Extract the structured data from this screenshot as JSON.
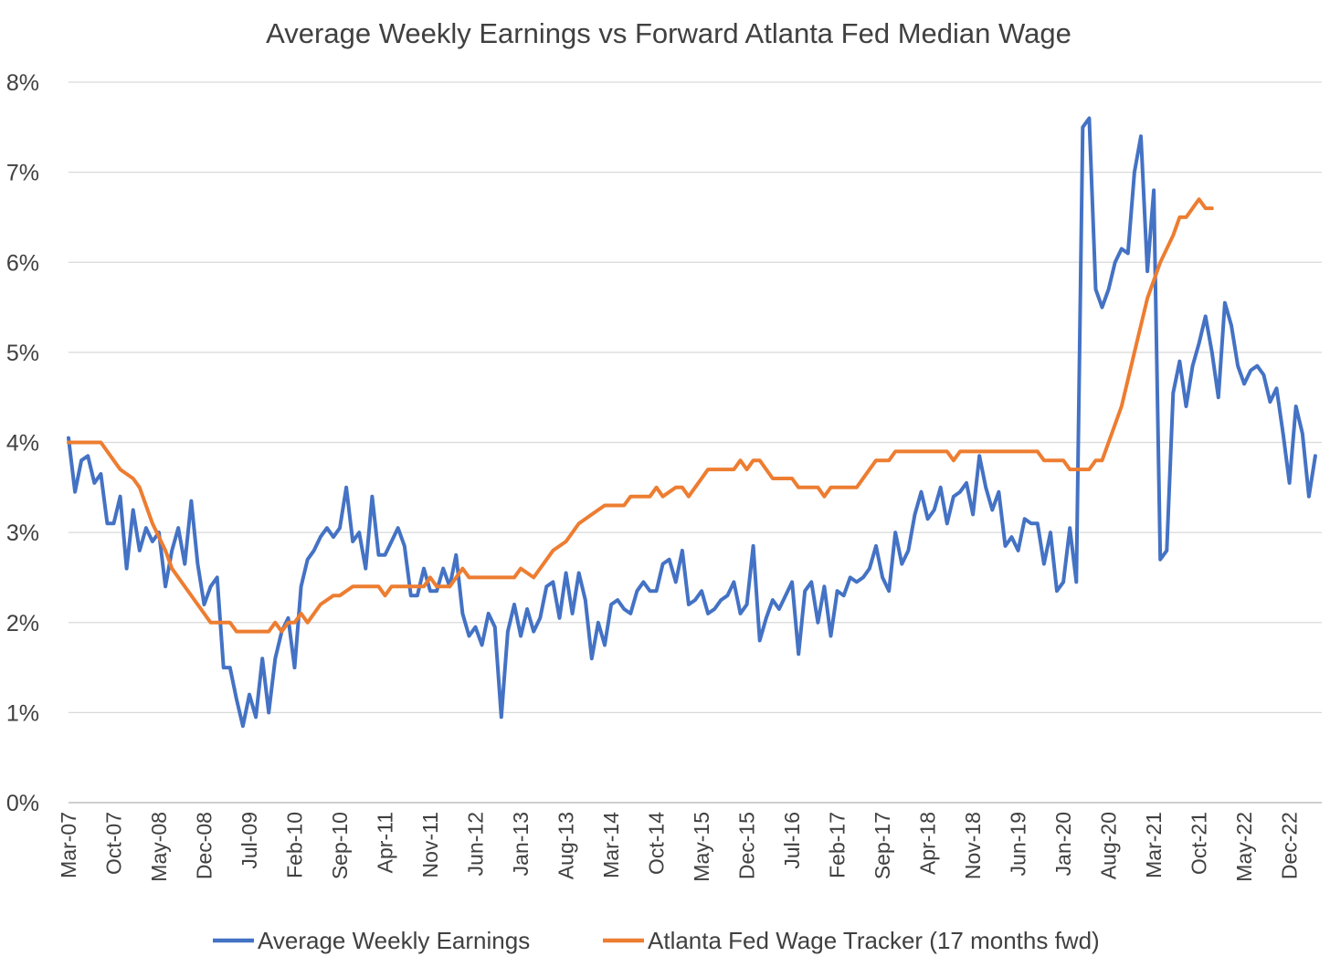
{
  "chart_data": {
    "type": "line",
    "title": "Average Weekly Earnings vs Forward Atlanta Fed Median Wage",
    "xlabel": "",
    "ylabel": "",
    "ylim": [
      0,
      8
    ],
    "y_ticks": [
      0,
      1,
      2,
      3,
      4,
      5,
      6,
      7,
      8
    ],
    "y_tick_labels": [
      "0%",
      "1%",
      "2%",
      "3%",
      "4%",
      "5%",
      "6%",
      "7%",
      "8%"
    ],
    "x_range": [
      "2007-03",
      "2023-05"
    ],
    "x_tick_labels": [
      "Mar-07",
      "Oct-07",
      "May-08",
      "Dec-08",
      "Jul-09",
      "Feb-10",
      "Sep-10",
      "Apr-11",
      "Nov-11",
      "Jun-12",
      "Jan-13",
      "Aug-13",
      "Mar-14",
      "Oct-14",
      "May-15",
      "Dec-15",
      "Jul-16",
      "Feb-17",
      "Sep-17",
      "Apr-18",
      "Nov-18",
      "Jun-19",
      "Jan-20",
      "Aug-20",
      "Mar-21",
      "Oct-21",
      "May-22",
      "Dec-22"
    ],
    "grid": true,
    "legend_position": "bottom",
    "series": [
      {
        "name": "Average Weekly Earnings",
        "color": "#4472C4",
        "points": [
          [
            "2007-03",
            4.05
          ],
          [
            "2007-04",
            3.45
          ],
          [
            "2007-05",
            3.8
          ],
          [
            "2007-06",
            3.85
          ],
          [
            "2007-07",
            3.55
          ],
          [
            "2007-08",
            3.65
          ],
          [
            "2007-09",
            3.1
          ],
          [
            "2007-10",
            3.1
          ],
          [
            "2007-11",
            3.4
          ],
          [
            "2007-12",
            2.6
          ],
          [
            "2008-01",
            3.25
          ],
          [
            "2008-02",
            2.8
          ],
          [
            "2008-03",
            3.05
          ],
          [
            "2008-04",
            2.9
          ],
          [
            "2008-05",
            3.0
          ],
          [
            "2008-06",
            2.4
          ],
          [
            "2008-07",
            2.8
          ],
          [
            "2008-08",
            3.05
          ],
          [
            "2008-09",
            2.65
          ],
          [
            "2008-10",
            3.35
          ],
          [
            "2008-11",
            2.65
          ],
          [
            "2008-12",
            2.2
          ],
          [
            "2009-01",
            2.4
          ],
          [
            "2009-02",
            2.5
          ],
          [
            "2009-03",
            1.5
          ],
          [
            "2009-04",
            1.5
          ],
          [
            "2009-05",
            1.15
          ],
          [
            "2009-06",
            0.85
          ],
          [
            "2009-07",
            1.2
          ],
          [
            "2009-08",
            0.95
          ],
          [
            "2009-09",
            1.6
          ],
          [
            "2009-10",
            1.0
          ],
          [
            "2009-11",
            1.6
          ],
          [
            "2009-12",
            1.9
          ],
          [
            "2010-01",
            2.05
          ],
          [
            "2010-02",
            1.5
          ],
          [
            "2010-03",
            2.4
          ],
          [
            "2010-04",
            2.7
          ],
          [
            "2010-05",
            2.8
          ],
          [
            "2010-06",
            2.95
          ],
          [
            "2010-07",
            3.05
          ],
          [
            "2010-08",
            2.95
          ],
          [
            "2010-09",
            3.05
          ],
          [
            "2010-10",
            3.5
          ],
          [
            "2010-11",
            2.9
          ],
          [
            "2010-12",
            3.0
          ],
          [
            "2011-01",
            2.6
          ],
          [
            "2011-02",
            3.4
          ],
          [
            "2011-03",
            2.75
          ],
          [
            "2011-04",
            2.75
          ],
          [
            "2011-05",
            2.9
          ],
          [
            "2011-06",
            3.05
          ],
          [
            "2011-07",
            2.85
          ],
          [
            "2011-08",
            2.3
          ],
          [
            "2011-09",
            2.3
          ],
          [
            "2011-10",
            2.6
          ],
          [
            "2011-11",
            2.35
          ],
          [
            "2011-12",
            2.35
          ],
          [
            "2012-01",
            2.6
          ],
          [
            "2012-02",
            2.4
          ],
          [
            "2012-03",
            2.75
          ],
          [
            "2012-04",
            2.1
          ],
          [
            "2012-05",
            1.85
          ],
          [
            "2012-06",
            1.95
          ],
          [
            "2012-07",
            1.75
          ],
          [
            "2012-08",
            2.1
          ],
          [
            "2012-09",
            1.95
          ],
          [
            "2012-10",
            0.95
          ],
          [
            "2012-11",
            1.9
          ],
          [
            "2012-12",
            2.2
          ],
          [
            "2013-01",
            1.85
          ],
          [
            "2013-02",
            2.15
          ],
          [
            "2013-03",
            1.9
          ],
          [
            "2013-04",
            2.05
          ],
          [
            "2013-05",
            2.4
          ],
          [
            "2013-06",
            2.45
          ],
          [
            "2013-07",
            2.05
          ],
          [
            "2013-08",
            2.55
          ],
          [
            "2013-09",
            2.1
          ],
          [
            "2013-10",
            2.55
          ],
          [
            "2013-11",
            2.25
          ],
          [
            "2013-12",
            1.6
          ],
          [
            "2014-01",
            2.0
          ],
          [
            "2014-02",
            1.75
          ],
          [
            "2014-03",
            2.2
          ],
          [
            "2014-04",
            2.25
          ],
          [
            "2014-05",
            2.15
          ],
          [
            "2014-06",
            2.1
          ],
          [
            "2014-07",
            2.35
          ],
          [
            "2014-08",
            2.45
          ],
          [
            "2014-09",
            2.35
          ],
          [
            "2014-10",
            2.35
          ],
          [
            "2014-11",
            2.65
          ],
          [
            "2014-12",
            2.7
          ],
          [
            "2015-01",
            2.45
          ],
          [
            "2015-02",
            2.8
          ],
          [
            "2015-03",
            2.2
          ],
          [
            "2015-04",
            2.25
          ],
          [
            "2015-05",
            2.35
          ],
          [
            "2015-06",
            2.1
          ],
          [
            "2015-07",
            2.15
          ],
          [
            "2015-08",
            2.25
          ],
          [
            "2015-09",
            2.3
          ],
          [
            "2015-10",
            2.45
          ],
          [
            "2015-11",
            2.1
          ],
          [
            "2015-12",
            2.2
          ],
          [
            "2016-01",
            2.85
          ],
          [
            "2016-02",
            1.8
          ],
          [
            "2016-03",
            2.05
          ],
          [
            "2016-04",
            2.25
          ],
          [
            "2016-05",
            2.15
          ],
          [
            "2016-06",
            2.3
          ],
          [
            "2016-07",
            2.45
          ],
          [
            "2016-08",
            1.65
          ],
          [
            "2016-09",
            2.35
          ],
          [
            "2016-10",
            2.45
          ],
          [
            "2016-11",
            2.0
          ],
          [
            "2016-12",
            2.4
          ],
          [
            "2017-01",
            1.85
          ],
          [
            "2017-02",
            2.35
          ],
          [
            "2017-03",
            2.3
          ],
          [
            "2017-04",
            2.5
          ],
          [
            "2017-05",
            2.45
          ],
          [
            "2017-06",
            2.5
          ],
          [
            "2017-07",
            2.6
          ],
          [
            "2017-08",
            2.85
          ],
          [
            "2017-09",
            2.5
          ],
          [
            "2017-10",
            2.35
          ],
          [
            "2017-11",
            3.0
          ],
          [
            "2017-12",
            2.65
          ],
          [
            "2018-01",
            2.8
          ],
          [
            "2018-02",
            3.2
          ],
          [
            "2018-03",
            3.45
          ],
          [
            "2018-04",
            3.15
          ],
          [
            "2018-05",
            3.25
          ],
          [
            "2018-06",
            3.5
          ],
          [
            "2018-07",
            3.1
          ],
          [
            "2018-08",
            3.4
          ],
          [
            "2018-09",
            3.45
          ],
          [
            "2018-10",
            3.55
          ],
          [
            "2018-11",
            3.2
          ],
          [
            "2018-12",
            3.85
          ],
          [
            "2019-01",
            3.5
          ],
          [
            "2019-02",
            3.25
          ],
          [
            "2019-03",
            3.45
          ],
          [
            "2019-04",
            2.85
          ],
          [
            "2019-05",
            2.95
          ],
          [
            "2019-06",
            2.8
          ],
          [
            "2019-07",
            3.15
          ],
          [
            "2019-08",
            3.1
          ],
          [
            "2019-09",
            3.1
          ],
          [
            "2019-10",
            2.65
          ],
          [
            "2019-11",
            3.0
          ],
          [
            "2019-12",
            2.35
          ],
          [
            "2020-01",
            2.45
          ],
          [
            "2020-02",
            3.05
          ],
          [
            "2020-03",
            2.45
          ],
          [
            "2020-04",
            7.5
          ],
          [
            "2020-05",
            7.6
          ],
          [
            "2020-06",
            5.7
          ],
          [
            "2020-07",
            5.5
          ],
          [
            "2020-08",
            5.7
          ],
          [
            "2020-09",
            6.0
          ],
          [
            "2020-10",
            6.15
          ],
          [
            "2020-11",
            6.1
          ],
          [
            "2020-12",
            7.0
          ],
          [
            "2021-01",
            7.4
          ],
          [
            "2021-02",
            5.9
          ],
          [
            "2021-03",
            6.8
          ],
          [
            "2021-04",
            2.7
          ],
          [
            "2021-05",
            2.8
          ],
          [
            "2021-06",
            4.55
          ],
          [
            "2021-07",
            4.9
          ],
          [
            "2021-08",
            4.4
          ],
          [
            "2021-09",
            4.85
          ],
          [
            "2021-10",
            5.1
          ],
          [
            "2021-11",
            5.4
          ],
          [
            "2021-12",
            5.0
          ],
          [
            "2022-01",
            4.5
          ],
          [
            "2022-02",
            5.55
          ],
          [
            "2022-03",
            5.3
          ],
          [
            "2022-04",
            4.85
          ],
          [
            "2022-05",
            4.65
          ],
          [
            "2022-06",
            4.8
          ],
          [
            "2022-07",
            4.85
          ],
          [
            "2022-08",
            4.75
          ],
          [
            "2022-09",
            4.45
          ],
          [
            "2022-10",
            4.6
          ],
          [
            "2022-11",
            4.1
          ],
          [
            "2022-12",
            3.55
          ],
          [
            "2023-01",
            4.4
          ],
          [
            "2023-02",
            4.1
          ],
          [
            "2023-03",
            3.4
          ],
          [
            "2023-04",
            3.85
          ]
        ]
      },
      {
        "name": "Atlanta Fed Wage Tracker (17 months fwd)",
        "color": "#ED7D31",
        "points": [
          [
            "2007-03",
            4.0
          ],
          [
            "2007-07",
            4.0
          ],
          [
            "2007-08",
            4.0
          ],
          [
            "2007-10",
            3.8
          ],
          [
            "2007-11",
            3.7
          ],
          [
            "2008-01",
            3.6
          ],
          [
            "2008-02",
            3.5
          ],
          [
            "2008-04",
            3.1
          ],
          [
            "2008-06",
            2.8
          ],
          [
            "2008-07",
            2.6
          ],
          [
            "2008-09",
            2.4
          ],
          [
            "2008-11",
            2.2
          ],
          [
            "2009-01",
            2.0
          ],
          [
            "2009-04",
            2.0
          ],
          [
            "2009-05",
            1.9
          ],
          [
            "2009-10",
            1.9
          ],
          [
            "2009-11",
            2.0
          ],
          [
            "2009-12",
            1.9
          ],
          [
            "2010-01",
            2.0
          ],
          [
            "2010-02",
            2.0
          ],
          [
            "2010-03",
            2.1
          ],
          [
            "2010-04",
            2.0
          ],
          [
            "2010-06",
            2.2
          ],
          [
            "2010-08",
            2.3
          ],
          [
            "2010-09",
            2.3
          ],
          [
            "2010-11",
            2.4
          ],
          [
            "2011-03",
            2.4
          ],
          [
            "2011-04",
            2.3
          ],
          [
            "2011-05",
            2.4
          ],
          [
            "2011-10",
            2.4
          ],
          [
            "2011-11",
            2.5
          ],
          [
            "2011-12",
            2.4
          ],
          [
            "2012-02",
            2.4
          ],
          [
            "2012-04",
            2.6
          ],
          [
            "2012-05",
            2.5
          ],
          [
            "2012-12",
            2.5
          ],
          [
            "2013-01",
            2.6
          ],
          [
            "2013-03",
            2.5
          ],
          [
            "2013-04",
            2.6
          ],
          [
            "2013-06",
            2.8
          ],
          [
            "2013-08",
            2.9
          ],
          [
            "2013-10",
            3.1
          ],
          [
            "2013-12",
            3.2
          ],
          [
            "2014-02",
            3.3
          ],
          [
            "2014-05",
            3.3
          ],
          [
            "2014-06",
            3.4
          ],
          [
            "2014-09",
            3.4
          ],
          [
            "2014-10",
            3.5
          ],
          [
            "2014-11",
            3.4
          ],
          [
            "2015-01",
            3.5
          ],
          [
            "2015-02",
            3.5
          ],
          [
            "2015-03",
            3.4
          ],
          [
            "2015-06",
            3.7
          ],
          [
            "2015-10",
            3.7
          ],
          [
            "2015-11",
            3.8
          ],
          [
            "2015-12",
            3.7
          ],
          [
            "2016-01",
            3.8
          ],
          [
            "2016-02",
            3.8
          ],
          [
            "2016-04",
            3.6
          ],
          [
            "2016-07",
            3.6
          ],
          [
            "2016-08",
            3.5
          ],
          [
            "2016-11",
            3.5
          ],
          [
            "2016-12",
            3.4
          ],
          [
            "2017-01",
            3.5
          ],
          [
            "2017-05",
            3.5
          ],
          [
            "2017-07",
            3.7
          ],
          [
            "2017-08",
            3.8
          ],
          [
            "2017-10",
            3.8
          ],
          [
            "2017-11",
            3.9
          ],
          [
            "2018-07",
            3.9
          ],
          [
            "2018-08",
            3.8
          ],
          [
            "2018-09",
            3.9
          ],
          [
            "2019-09",
            3.9
          ],
          [
            "2019-10",
            3.8
          ],
          [
            "2020-01",
            3.8
          ],
          [
            "2020-02",
            3.7
          ],
          [
            "2020-05",
            3.7
          ],
          [
            "2020-06",
            3.8
          ],
          [
            "2020-07",
            3.8
          ],
          [
            "2020-08",
            4.0
          ],
          [
            "2020-10",
            4.4
          ],
          [
            "2020-12",
            5.0
          ],
          [
            "2021-02",
            5.6
          ],
          [
            "2021-04",
            6.0
          ],
          [
            "2021-06",
            6.3
          ],
          [
            "2021-07",
            6.5
          ],
          [
            "2021-08",
            6.5
          ],
          [
            "2021-10",
            6.7
          ],
          [
            "2021-11",
            6.6
          ],
          [
            "2021-12",
            6.6
          ]
        ]
      }
    ]
  }
}
